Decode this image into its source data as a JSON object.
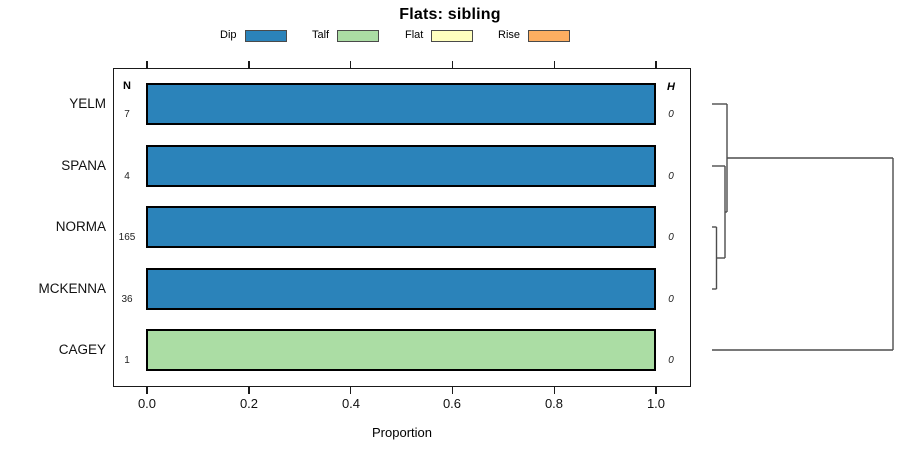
{
  "title": "Flats: sibling",
  "legend": {
    "items": [
      {
        "label": "Dip",
        "color": "#2b83ba"
      },
      {
        "label": "Talf",
        "color": "#abdda4"
      },
      {
        "label": "Flat",
        "color": "#ffffbf"
      },
      {
        "label": "Rise",
        "color": "#fdae61"
      }
    ]
  },
  "columns": {
    "n_header": "N",
    "h_header": "H"
  },
  "rows": [
    {
      "label": "YELM",
      "n": "7",
      "h": "0",
      "category": "Dip",
      "color": "#2b83ba",
      "proportion": 1.0
    },
    {
      "label": "SPANA",
      "n": "4",
      "h": "0",
      "category": "Dip",
      "color": "#2b83ba",
      "proportion": 1.0
    },
    {
      "label": "NORMA",
      "n": "165",
      "h": "0",
      "category": "Dip",
      "color": "#2b83ba",
      "proportion": 1.0
    },
    {
      "label": "MCKENNA",
      "n": "36",
      "h": "0",
      "category": "Dip",
      "color": "#2b83ba",
      "proportion": 1.0
    },
    {
      "label": "CAGEY",
      "n": "1",
      "h": "0",
      "category": "Talf",
      "color": "#abdda4",
      "proportion": 1.0
    }
  ],
  "axis": {
    "label": "Proportion",
    "ticks": [
      "0.0",
      "0.2",
      "0.4",
      "0.6",
      "0.8",
      "1.0"
    ],
    "range": [
      0,
      1
    ]
  },
  "chart_data": {
    "type": "bar",
    "orientation": "horizontal",
    "title": "Flats: sibling",
    "xlabel": "Proportion",
    "xlim": [
      0,
      1
    ],
    "x_ticks": [
      0.0,
      0.2,
      0.4,
      0.6,
      0.8,
      1.0
    ],
    "categories": [
      "YELM",
      "SPANA",
      "NORMA",
      "MCKENNA",
      "CAGEY"
    ],
    "n_counts": [
      7,
      4,
      165,
      36,
      1
    ],
    "h_values": [
      0,
      0,
      0,
      0,
      0
    ],
    "series": [
      {
        "name": "Dip",
        "color": "#2b83ba",
        "values": [
          1.0,
          1.0,
          1.0,
          1.0,
          0.0
        ]
      },
      {
        "name": "Talf",
        "color": "#abdda4",
        "values": [
          0.0,
          0.0,
          0.0,
          0.0,
          1.0
        ]
      },
      {
        "name": "Flat",
        "color": "#ffffbf",
        "values": [
          0.0,
          0.0,
          0.0,
          0.0,
          0.0
        ]
      },
      {
        "name": "Rise",
        "color": "#fdae61",
        "values": [
          0.0,
          0.0,
          0.0,
          0.0,
          0.0
        ]
      }
    ],
    "legend_position": "top",
    "grid": false,
    "dendrogram": {
      "present": true,
      "side": "right",
      "merge_order": [
        [
          "NORMA",
          "MCKENNA"
        ],
        [
          "SPANA",
          "(NORMA,MCKENNA)"
        ],
        [
          "YELM",
          "(SPANA,NORMA,MCKENNA)"
        ],
        [
          "CAGEY",
          "(YELM,SPANA,NORMA,MCKENNA)"
        ]
      ]
    }
  }
}
